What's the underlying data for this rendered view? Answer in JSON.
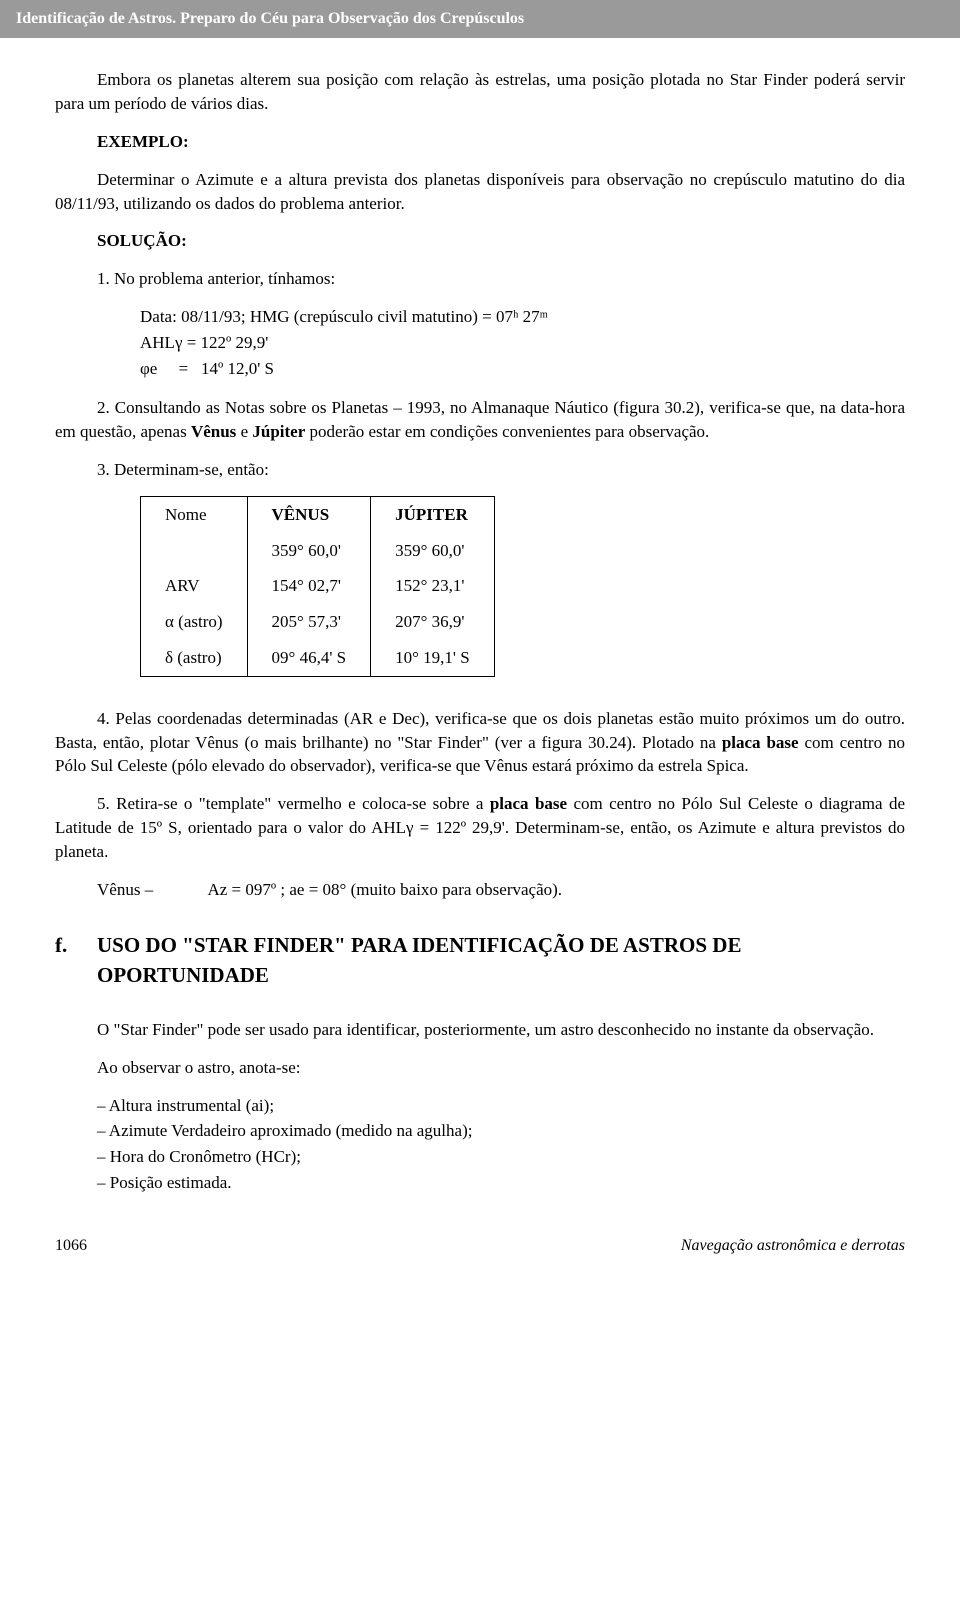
{
  "header": "Identificação de Astros. Preparo do Céu para Observação dos Crepúsculos",
  "p_intro": "Embora os planetas alterem sua posição com relação às estrelas, uma posição plotada no Star Finder poderá servir para um período de vários dias.",
  "exemplo_label": "EXEMPLO:",
  "exemplo_text": "Determinar o Azimute e a altura prevista dos planetas disponíveis para observação no crepúsculo matutino do dia 08/11/93, utilizando os dados do problema anterior.",
  "solucao_label": "SOLUÇÃO:",
  "item1_lead": "1. No problema anterior, tínhamos:",
  "data": {
    "l1": "Data: 08/11/93; HMG (crepúsculo civil matutino) = 07ʰ 27ᵐ",
    "l2": "AHLγ = 122º 29,9'",
    "l3": "φe  =  14º 12,0' S"
  },
  "item2_a": "2. Consultando as Notas sobre os Planetas – 1993, no Almanaque Náutico (figura 30.2), verifica-se que, na data-hora em questão, apenas ",
  "item2_b": "Vênus",
  "item2_c": " e ",
  "item2_d": "Júpiter",
  "item2_e": " poderão estar em condições convenientes para observação.",
  "item3": "3. Determinam-se, então:",
  "table": {
    "h_nome": "Nome",
    "h_venus": "VÊNUS",
    "h_jup": "JÚPITER",
    "r_blank": "",
    "r_arv": "ARV",
    "r_alpha": "α (astro)",
    "r_delta": "δ (astro)",
    "v_1": "359° 60,0'",
    "v_2": "154° 02,7'",
    "v_3": "205° 57,3'",
    "v_4": "09° 46,4' S",
    "j_1": "359° 60,0'",
    "j_2": "152° 23,1'",
    "j_3": "207° 36,9'",
    "j_4": "10° 19,1' S"
  },
  "item4_a": "4. Pelas coordenadas determinadas (AR e Dec), verifica-se que os dois planetas estão muito próximos um do outro. Basta, então, plotar Vênus (o mais brilhante) no \"Star Finder\" (ver a figura 30.24). Plotado na ",
  "item4_b": "placa base",
  "item4_c": " com centro no Pólo Sul Celeste (pólo elevado do observador), verifica-se que Vênus estará próximo da estrela Spica.",
  "item5_a": "5. Retira-se o \"template\" vermelho e coloca-se sobre a ",
  "item5_b": "placa base",
  "item5_c": " com centro no Pólo Sul Celeste o diagrama de Latitude de 15º S, orientado para o valor do AHLγ = 122º 29,9'. Determinam-se, então, os Azimute e altura previstos do planeta.",
  "venus_label": "Vênus –",
  "venus_val": "Az = 097º ; ae = 08° (muito baixo para observação).",
  "section_f": "f.",
  "section_title": "USO DO \"STAR FINDER\" PARA IDENTIFICAÇÃO DE ASTROS DE OPORTUNIDADE",
  "p_f1": "O \"Star Finder\" pode ser usado para identificar, posteriormente, um astro desconhecido no instante da observação.",
  "p_f2": "Ao observar o astro, anota-se:",
  "list": {
    "i1": "– Altura instrumental (ai);",
    "i2": "– Azimute Verdadeiro aproximado (medido na agulha);",
    "i3": "– Hora do Cronômetro (HCr);",
    "i4": "– Posição estimada."
  },
  "page_num": "1066",
  "footer_text": "Navegação astronômica e derrotas"
}
